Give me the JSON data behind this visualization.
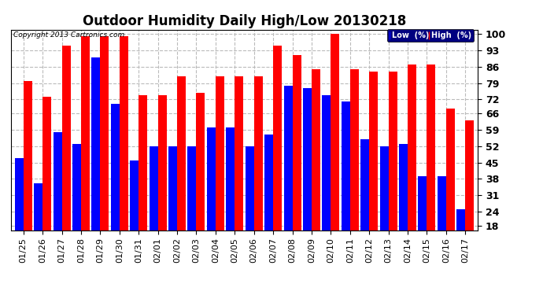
{
  "title": "Outdoor Humidity Daily High/Low 20130218",
  "copyright": "Copyright 2013 Cartronics.com",
  "legend_low": "Low  (%)",
  "legend_high": "High  (%)",
  "categories": [
    "01/25",
    "01/26",
    "01/27",
    "01/28",
    "01/29",
    "01/30",
    "01/31",
    "02/01",
    "02/02",
    "02/03",
    "02/04",
    "02/05",
    "02/06",
    "02/07",
    "02/08",
    "02/09",
    "02/10",
    "02/11",
    "02/12",
    "02/13",
    "02/14",
    "02/15",
    "02/16",
    "02/17"
  ],
  "high_values": [
    80,
    73,
    95,
    99,
    99,
    99,
    74,
    74,
    82,
    75,
    82,
    82,
    82,
    95,
    91,
    85,
    100,
    85,
    84,
    84,
    87,
    87,
    68,
    63
  ],
  "low_values": [
    47,
    36,
    58,
    53,
    90,
    70,
    46,
    52,
    52,
    52,
    60,
    60,
    52,
    57,
    78,
    77,
    74,
    71,
    55,
    52,
    53,
    39,
    39,
    25
  ],
  "bg_color": "#ffffff",
  "bar_color_high": "#ff0000",
  "bar_color_low": "#0000ff",
  "ylim_min": 18,
  "ylim_max": 100,
  "yticks": [
    18,
    24,
    31,
    38,
    45,
    52,
    59,
    66,
    72,
    79,
    86,
    93,
    100
  ],
  "grid_color": "#bbbbbb",
  "title_fontsize": 12,
  "tick_fontsize": 9,
  "axis_bg": "#ffffff"
}
